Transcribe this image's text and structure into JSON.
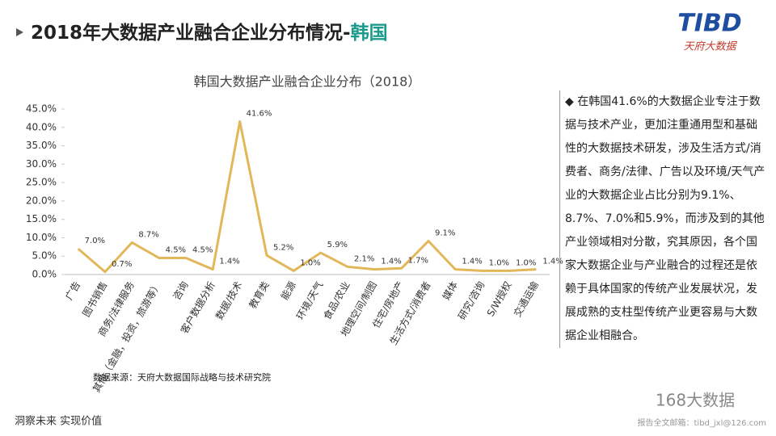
{
  "header": {
    "title": "2018年大数据产业融合企业分布情况-",
    "title_highlight": "韩国",
    "logo": "TIBD",
    "logo_sub": "天府大数据"
  },
  "chart_data": {
    "type": "line",
    "title": "韩国大数据产业融合企业分布（2018）",
    "categories": [
      "广告",
      "图书销售",
      "商务/法律服务",
      "其他（金融，投资，旅游等）",
      "咨询",
      "客户数据分析",
      "数据/技术",
      "教育类",
      "能源",
      "环境/天气",
      "食品/农业",
      "地理空间/制图",
      "住宅/房地产",
      "生活方式/消费者",
      "媒体",
      "研究/咨询",
      "S/W授权",
      "交通运输"
    ],
    "values": [
      7.0,
      0.7,
      8.7,
      4.5,
      4.5,
      1.4,
      41.6,
      5.2,
      1.0,
      5.9,
      2.1,
      1.4,
      1.7,
      9.1,
      1.4,
      1.0,
      1.0,
      1.4
    ],
    "value_labels": [
      "7.0%",
      "0.7%",
      "8.7%",
      "4.5%",
      "4.5%",
      "1.4%",
      "41.6%",
      "5.2%",
      "1.0%",
      "5.9%",
      "2.1%",
      "1.4%",
      "1.7%",
      "9.1%",
      "1.4%",
      "1.0%",
      "1.0%",
      "1.4%"
    ],
    "color": "#e2b75a",
    "ylim": [
      0,
      45
    ],
    "yticks": [
      {
        "value": 0,
        "label": "0.0%"
      },
      {
        "value": 5,
        "label": "5.0%"
      },
      {
        "value": 10,
        "label": "10.0%"
      },
      {
        "value": 15,
        "label": "15.0%"
      },
      {
        "value": 20,
        "label": "20.0%"
      },
      {
        "value": 25,
        "label": "25.0%"
      },
      {
        "value": 30,
        "label": "30.0%"
      },
      {
        "value": 35,
        "label": "35.0%"
      },
      {
        "value": 40,
        "label": "40.0%"
      },
      {
        "value": 45,
        "label": "45.0%"
      }
    ],
    "source": "数据来源：天府大数据国际战略与技术研究院"
  },
  "side_text": "◆ 在韩国41.6%的大数据企业专注于数据与技术产业，更加注重通用型和基础性的大数据技术研发，涉及生活方式/消费者、商务/法律、广告以及环境/天气产业的大数据企业占比分别为9.1%、8.7%、7.0%和5.9%，而涉及到的其他产业领域相对分散，究其原因，各个国家大数据企业与产业融合的过程还是依赖于具体国家的传统产业发展状况，发展成熟的支柱型传统产业更容易与大数据企业相融合。",
  "footer": {
    "slogan": "洞察未来 实现价值",
    "watermark": "168大数据",
    "email": "报告全文邮箱：tibd_jxl@126.com"
  }
}
